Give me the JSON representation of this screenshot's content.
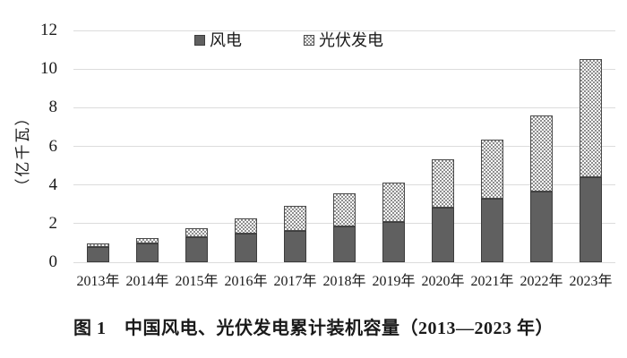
{
  "figure": {
    "caption": "图 1　中国风电、光伏发电累计装机容量（2013—2023 年）"
  },
  "chart_data": {
    "type": "bar",
    "stacked": true,
    "title": "图 1　中国风电、光伏发电累计装机容量（2013—2023 年）",
    "ylabel": "（亿千瓦）",
    "ylim": [
      0,
      12
    ],
    "ytick_step": 2,
    "grid": true,
    "legend_position": "top-inside",
    "categories": [
      "2013年",
      "2014年",
      "2015年",
      "2016年",
      "2017年",
      "2018年",
      "2019年",
      "2020年",
      "2021年",
      "2022年",
      "2023年"
    ],
    "series": [
      {
        "name": "风电",
        "pattern": "solid",
        "color": "#606060",
        "values": [
          0.77,
          0.96,
          1.31,
          1.49,
          1.64,
          1.84,
          2.08,
          2.81,
          3.28,
          3.65,
          4.41
        ]
      },
      {
        "name": "光伏发电",
        "pattern": "checker",
        "color": "#9a9a9a",
        "values": [
          0.19,
          0.28,
          0.43,
          0.77,
          1.3,
          1.74,
          2.06,
          2.53,
          3.06,
          3.93,
          6.09
        ]
      }
    ],
    "colors": {
      "grid": "#dcdcdc",
      "text": "#1a1a1a",
      "bar_border": "#3d3d3d",
      "background": "#ffffff"
    }
  }
}
